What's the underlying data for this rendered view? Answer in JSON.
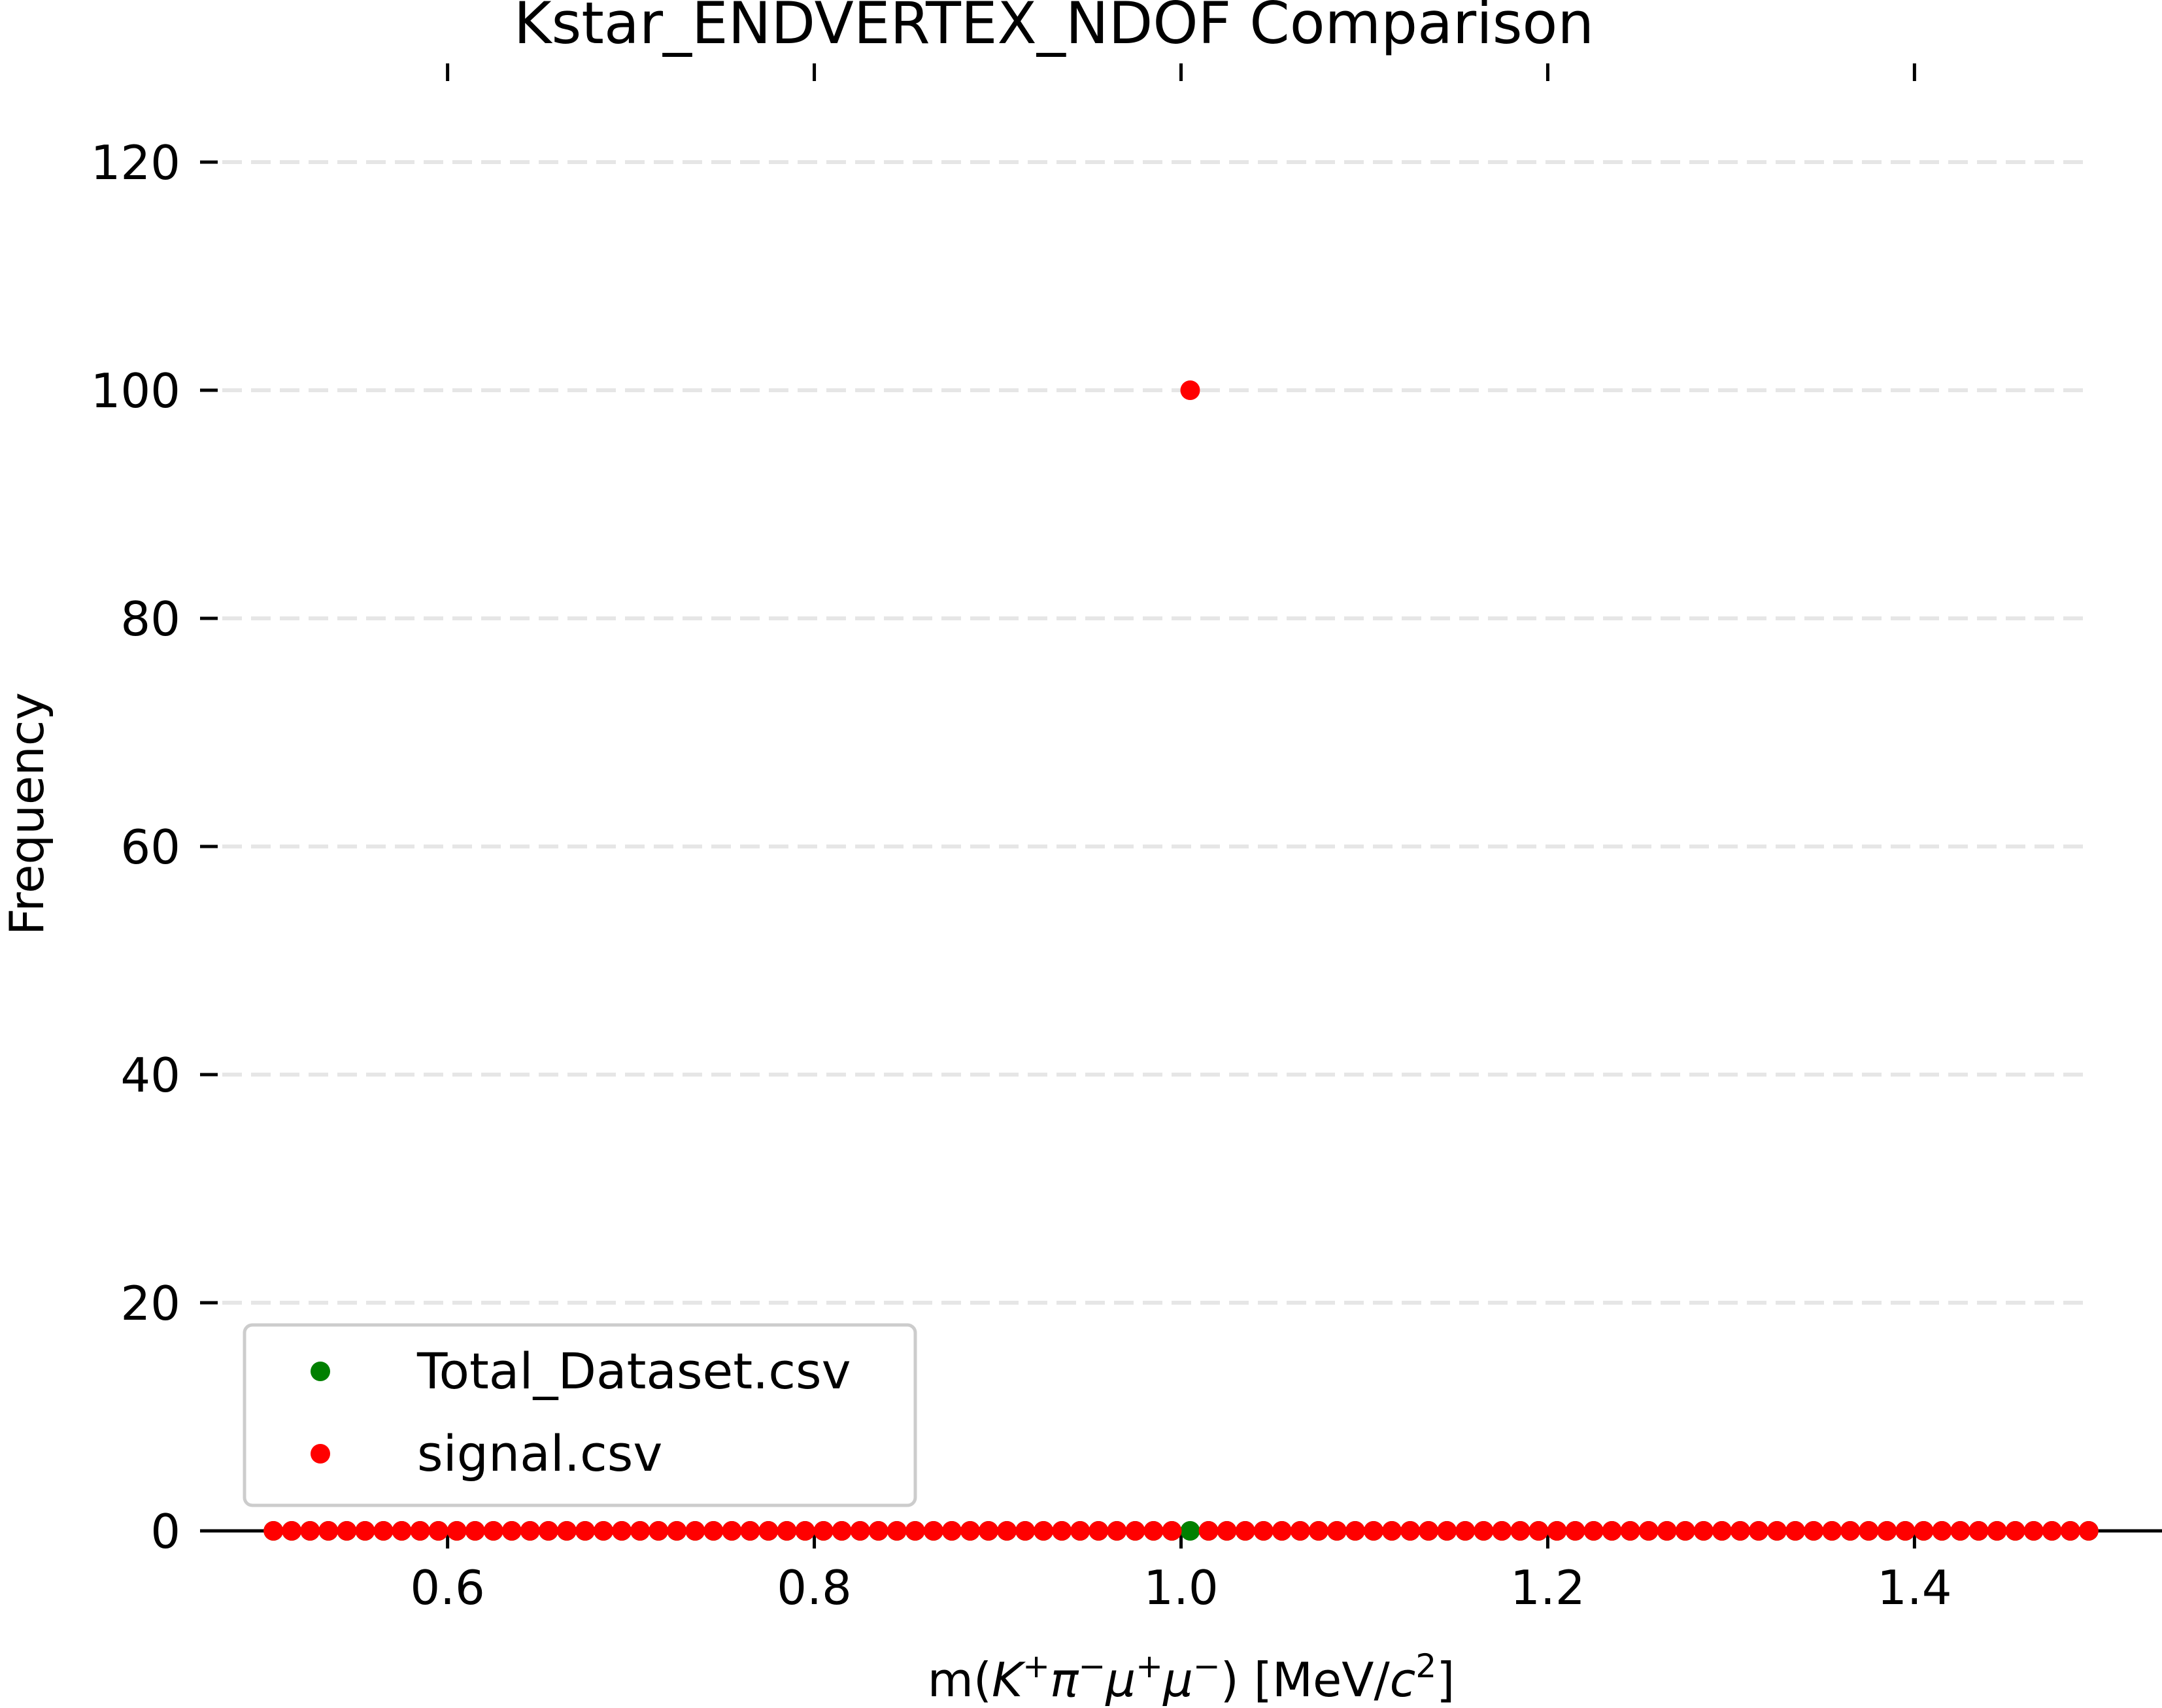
{
  "chart_data": {
    "type": "scatter",
    "title": "Kstar_ENDVERTEX_NDOF Comparison",
    "xlabel": {
      "prefix": "m(",
      "parts": [
        {
          "t": "K",
          "italic": true
        },
        {
          "t": "+",
          "sup": true
        },
        {
          "t": "π",
          "italic": true
        },
        {
          "t": "−",
          "sup": true
        },
        {
          "t": "μ",
          "italic": true
        },
        {
          "t": "+",
          "sup": true
        },
        {
          "t": "μ",
          "italic": true
        },
        {
          "t": "−",
          "sup": true
        }
      ],
      "middle": ") [MeV/",
      "unit_parts": [
        {
          "t": "c",
          "italic": true
        },
        {
          "t": "2",
          "sup": true
        }
      ],
      "suffix": "]"
    },
    "ylabel": "Frequency",
    "xlim": [
      0.465,
      1.535
    ],
    "ylim": [
      0,
      125
    ],
    "x_ticks": [
      0.6,
      0.8,
      1.0,
      1.2,
      1.4
    ],
    "x_tick_labels": [
      "0.6",
      "0.8",
      "1.0",
      "1.2",
      "1.4"
    ],
    "y_ticks": [
      0,
      20,
      40,
      60,
      80,
      100,
      120
    ],
    "y_tick_labels": [
      "0",
      "20",
      "40",
      "60",
      "80",
      "100",
      "120"
    ],
    "grid": {
      "y": true,
      "style": "dashed"
    },
    "legend_position": "lower-left",
    "series": [
      {
        "name": "Total_Dataset.csv",
        "color": "#008000",
        "x_range": [
          0.505,
          1.495
        ],
        "bins": 100,
        "zero_value": 0,
        "spikes": []
      },
      {
        "name": "signal.csv",
        "color": "#ff0000",
        "x_range": [
          0.505,
          1.495
        ],
        "bins": 100,
        "zero_value": 0,
        "spikes": [
          {
            "x": 1.005,
            "y": 100
          }
        ]
      }
    ]
  }
}
